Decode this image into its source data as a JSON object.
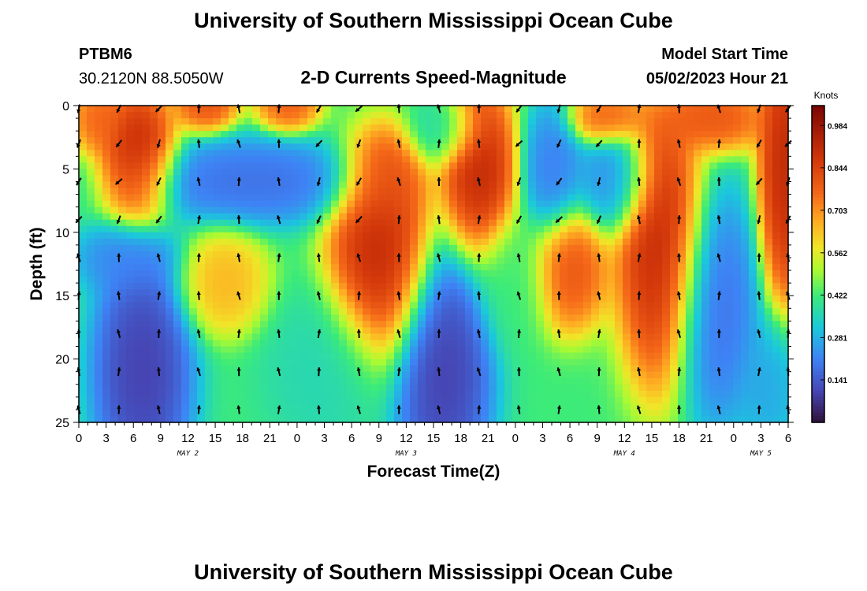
{
  "page": {
    "title": "University of Southern Mississippi Ocean Cube",
    "footer_title": "University of Southern Mississippi Ocean Cube"
  },
  "header": {
    "station": "PTBM6",
    "coords": "30.2120N  88.5050W",
    "chart_title": "2-D Currents Speed-Magnitude",
    "model_label": "Model Start Time",
    "model_time": "05/02/2023 Hour 21"
  },
  "chart_data": {
    "type": "heatmap",
    "title": "2-D Currents Speed-Magnitude",
    "xlabel": "Forecast Time(Z)",
    "ylabel": "Depth (ft)",
    "x_ticks": [
      "0",
      "3",
      "6",
      "9",
      "12",
      "15",
      "18",
      "21",
      "0",
      "3",
      "6",
      "9",
      "12",
      "15",
      "18",
      "21",
      "0",
      "3",
      "6",
      "9",
      "12",
      "15",
      "18",
      "21",
      "0",
      "3",
      "6"
    ],
    "x_range_hours": [
      0,
      78
    ],
    "day_labels": [
      {
        "text": "MAY 2",
        "hour": 12
      },
      {
        "text": "MAY 3",
        "hour": 36
      },
      {
        "text": "MAY 4",
        "hour": 60
      },
      {
        "text": "MAY 5",
        "hour": 75
      }
    ],
    "y_ticks": [
      "0",
      "5",
      "10",
      "15",
      "20",
      "25"
    ],
    "y_range_ft": [
      0,
      25
    ],
    "colorbar": {
      "unit": "Knots",
      "ticks": [
        "0.984",
        "0.844",
        "0.703",
        "0.562",
        "0.422",
        "0.281",
        "0.141"
      ],
      "tick_values": [
        0.984,
        0.844,
        0.703,
        0.562,
        0.422,
        0.281,
        0.141
      ],
      "min": 0.0,
      "max": 1.05
    },
    "vector_depths_ft": [
      0,
      3,
      6,
      9,
      12,
      15,
      18,
      21,
      24
    ],
    "vector_times_h": [
      0,
      4.4,
      8.8,
      13.2,
      17.6,
      22,
      26.4,
      30.8,
      35.2,
      39.6,
      44,
      48.4,
      52.8,
      57.2,
      61.6,
      66,
      70.4,
      74.8,
      78
    ],
    "speed_features": [
      {
        "hour": 6.5,
        "depth": 4,
        "speed": 0.98,
        "sx": 3,
        "sy": 4
      },
      {
        "hour": 2,
        "depth": 1,
        "speed": 0.8,
        "sx": 2,
        "sy": 2
      },
      {
        "hour": 14,
        "depth": 0,
        "speed": 0.85,
        "sx": 2.5,
        "sy": 1.5
      },
      {
        "hour": 23,
        "depth": 0,
        "speed": 0.82,
        "sx": 2.5,
        "sy": 1.5
      },
      {
        "hour": 7,
        "depth": 21,
        "speed": 0.05,
        "sx": 4,
        "sy": 7
      },
      {
        "hour": 5,
        "depth": 12,
        "speed": 0.2,
        "sx": 4,
        "sy": 2
      },
      {
        "hour": 19,
        "depth": 6,
        "speed": 0.15,
        "sx": 9,
        "sy": 2.5
      },
      {
        "hour": 16,
        "depth": 14,
        "speed": 0.68,
        "sx": 3.5,
        "sy": 3
      },
      {
        "hour": 33,
        "depth": 12,
        "speed": 0.98,
        "sx": 4,
        "sy": 6
      },
      {
        "hour": 34,
        "depth": 6,
        "speed": 0.85,
        "sx": 3,
        "sy": 3
      },
      {
        "hour": 40,
        "depth": 2,
        "speed": 0.35,
        "sx": 3,
        "sy": 2
      },
      {
        "hour": 40,
        "depth": 21,
        "speed": 0.05,
        "sx": 4,
        "sy": 7
      },
      {
        "hour": 44,
        "depth": 5,
        "speed": 0.98,
        "sx": 3,
        "sy": 5
      },
      {
        "hour": 48,
        "depth": 14,
        "speed": 0.42,
        "sx": 3,
        "sy": 4
      },
      {
        "hour": 54,
        "depth": 13,
        "speed": 0.85,
        "sx": 3,
        "sy": 3.5
      },
      {
        "hour": 52,
        "depth": 5,
        "speed": 0.18,
        "sx": 2.5,
        "sy": 4
      },
      {
        "hour": 59,
        "depth": 6,
        "speed": 0.2,
        "sx": 3,
        "sy": 3
      },
      {
        "hour": 58,
        "depth": 1,
        "speed": 0.82,
        "sx": 3,
        "sy": 1.5
      },
      {
        "hour": 64,
        "depth": 11,
        "speed": 0.98,
        "sx": 3.5,
        "sy": 8
      },
      {
        "hour": 70,
        "depth": 1,
        "speed": 0.85,
        "sx": 4,
        "sy": 2
      },
      {
        "hour": 70,
        "depth": 16,
        "speed": 0.15,
        "sx": 3.5,
        "sy": 7
      },
      {
        "hour": 77.5,
        "depth": 5,
        "speed": 0.98,
        "sx": 2,
        "sy": 8
      },
      {
        "hour": 76,
        "depth": 22,
        "speed": 0.25,
        "sx": 2.5,
        "sy": 4
      },
      {
        "hour": 27,
        "depth": 21,
        "speed": 0.35,
        "sx": 5,
        "sy": 5
      }
    ],
    "background_speed": 0.42,
    "vector_direction_rule": "mostly up (northward) at depth, down/southward in surface layers during ebb intervals"
  }
}
